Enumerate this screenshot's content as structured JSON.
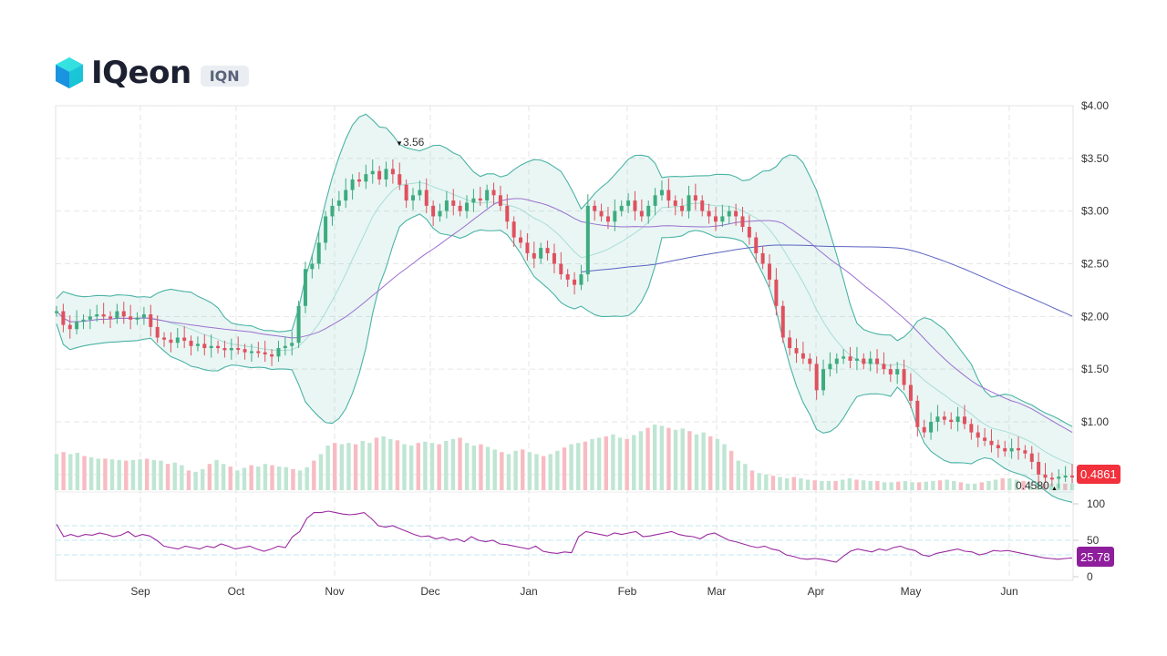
{
  "header": {
    "coin_name": "IQeon",
    "ticker": "IQN",
    "logo_icon": "cube-icon"
  },
  "colors": {
    "up": "#26a69a",
    "up_candle": "#3dab7f",
    "down": "#e0505f",
    "volume_up": "#bfe6d3",
    "volume_down": "#f7bcc2",
    "bb_band": "#4bb3a5",
    "bb_fill": "rgba(76,179,165,0.12)",
    "bb_mid": "#a9ddd5",
    "ma_short": "#9b6fd0",
    "ma_long": "#5b63c2",
    "rsi": "#9a2aa0",
    "rsi_levels": "#bfe9f3",
    "last_price_badge": "#f2313c",
    "rsi_badge": "#8e1e9c",
    "grid": "#e6e6e6"
  },
  "annotations": {
    "high_label": "3.56",
    "low_label": "0.4580",
    "last_price": "0.4861",
    "rsi_value": "25.78"
  },
  "chart_data": {
    "type": "candlestick",
    "title": "IQeon (IQN)",
    "price_axis": {
      "ticks": [
        "$4.00",
        "$3.50",
        "$3.00",
        "$2.50",
        "$2.00",
        "$1.50",
        "$1.00"
      ],
      "values": [
        4.0,
        3.5,
        3.0,
        2.5,
        2.0,
        1.5,
        1.0
      ],
      "ylim": [
        0.35,
        4.0
      ]
    },
    "rsi_axis": {
      "ticks": [
        "100",
        "50",
        "0"
      ],
      "values": [
        100,
        50,
        0
      ],
      "levels": [
        70,
        50,
        30
      ]
    },
    "x_axis": {
      "ticks": [
        "Sep",
        "Oct",
        "Nov",
        "Dec",
        "Jan",
        "Feb",
        "Mar",
        "Apr",
        "May",
        "Jun"
      ],
      "positions": [
        154,
        259,
        367,
        472,
        580,
        688,
        786,
        895,
        999,
        1107
      ]
    },
    "indicators": [
      "Bollinger Bands",
      "Moving Average (short)",
      "Moving Average (long)",
      "Volume",
      "RSI"
    ],
    "close_series": {
      "x_start": 62,
      "x_end": 1176,
      "values": [
        2.05,
        1.92,
        1.88,
        1.95,
        1.97,
        2.0,
        2.02,
        2.0,
        1.98,
        2.05,
        2.0,
        1.97,
        1.99,
        2.02,
        1.9,
        1.8,
        1.78,
        1.75,
        1.8,
        1.77,
        1.72,
        1.74,
        1.7,
        1.72,
        1.7,
        1.68,
        1.7,
        1.69,
        1.66,
        1.67,
        1.66,
        1.64,
        1.62,
        1.7,
        1.72,
        1.75,
        2.1,
        2.45,
        2.5,
        2.7,
        2.95,
        3.05,
        3.1,
        3.2,
        3.3,
        3.28,
        3.35,
        3.38,
        3.3,
        3.4,
        3.35,
        3.25,
        3.1,
        3.15,
        3.2,
        3.05,
        2.95,
        3.0,
        3.1,
        3.05,
        3.0,
        3.08,
        3.12,
        3.1,
        3.2,
        3.15,
        3.05,
        2.9,
        2.75,
        2.7,
        2.6,
        2.55,
        2.65,
        2.6,
        2.5,
        2.4,
        2.35,
        2.3,
        2.4,
        3.05,
        3.0,
        2.95,
        2.9,
        3.0,
        3.05,
        3.1,
        3.0,
        2.95,
        3.05,
        3.15,
        3.2,
        3.1,
        3.05,
        3.0,
        3.15,
        3.1,
        3.0,
        2.95,
        2.9,
        2.95,
        3.0,
        2.95,
        2.85,
        2.75,
        2.6,
        2.5,
        2.35,
        2.1,
        1.8,
        1.7,
        1.65,
        1.6,
        1.55,
        1.3,
        1.5,
        1.55,
        1.6,
        1.62,
        1.58,
        1.6,
        1.55,
        1.6,
        1.55,
        1.5,
        1.45,
        1.5,
        1.35,
        1.2,
        0.95,
        0.9,
        1.0,
        1.05,
        1.02,
        1.0,
        1.05,
        0.98,
        0.9,
        0.85,
        0.82,
        0.78,
        0.75,
        0.72,
        0.75,
        0.73,
        0.7,
        0.62,
        0.5,
        0.47,
        0.46,
        0.48,
        0.49,
        0.4861
      ]
    },
    "high": {
      "value": 3.56,
      "label": "3.56"
    },
    "low": {
      "value": 0.458,
      "label": "0.4580"
    },
    "last_price": 0.4861,
    "rsi_last": 25.78,
    "rsi_series": [
      72,
      55,
      58,
      55,
      58,
      57,
      60,
      58,
      55,
      57,
      62,
      55,
      58,
      56,
      50,
      42,
      40,
      38,
      42,
      40,
      38,
      42,
      40,
      45,
      42,
      38,
      40,
      42,
      38,
      35,
      38,
      42,
      40,
      55,
      62,
      80,
      88,
      88,
      90,
      88,
      86,
      85,
      86,
      88,
      80,
      70,
      68,
      70,
      66,
      62,
      58,
      55,
      56,
      52,
      54,
      50,
      52,
      48,
      55,
      50,
      48,
      50,
      45,
      44,
      42,
      40,
      38,
      42,
      35,
      33,
      32,
      34,
      33,
      55,
      62,
      60,
      58,
      56,
      60,
      58,
      60,
      62,
      55,
      56,
      58,
      60,
      62,
      58,
      56,
      55,
      52,
      58,
      60,
      55,
      50,
      48,
      45,
      42,
      40,
      42,
      38,
      36,
      30,
      28,
      25,
      24,
      25,
      24,
      22,
      20,
      28,
      35,
      38,
      36,
      34,
      38,
      36,
      40,
      42,
      38,
      36,
      30,
      28,
      32,
      34,
      36,
      38,
      35,
      34,
      30,
      32,
      36,
      35,
      36,
      34,
      32,
      30,
      28,
      26,
      25,
      24,
      25,
      25.78
    ],
    "volume_series": [
      55,
      58,
      55,
      57,
      52,
      50,
      48,
      48,
      47,
      46,
      45,
      46,
      47,
      48,
      46,
      45,
      40,
      42,
      38,
      30,
      28,
      32,
      40,
      46,
      40,
      36,
      30,
      34,
      38,
      36,
      40,
      38,
      36,
      35,
      32,
      30,
      35,
      45,
      55,
      68,
      72,
      70,
      72,
      70,
      75,
      72,
      80,
      82,
      78,
      76,
      70,
      68,
      72,
      74,
      72,
      70,
      75,
      78,
      80,
      72,
      68,
      70,
      66,
      62,
      58,
      55,
      60,
      62,
      58,
      55,
      52,
      55,
      60,
      65,
      70,
      72,
      74,
      78,
      80,
      82,
      85,
      80,
      78,
      84,
      90,
      95,
      100,
      98,
      95,
      92,
      94,
      90,
      85,
      88,
      82,
      78,
      70,
      60,
      45,
      40,
      30,
      26,
      24,
      22,
      20,
      18,
      20,
      18,
      16,
      15,
      14,
      14,
      14,
      16,
      18,
      16,
      15,
      14,
      14,
      12,
      12,
      13,
      14,
      12,
      12,
      13,
      14,
      15,
      16,
      14,
      12,
      10,
      10,
      12,
      14,
      16,
      18,
      18,
      16,
      14,
      12,
      12,
      10,
      10,
      10,
      10,
      10
    ],
    "volume_direction": "alternating up/down matching candles"
  }
}
